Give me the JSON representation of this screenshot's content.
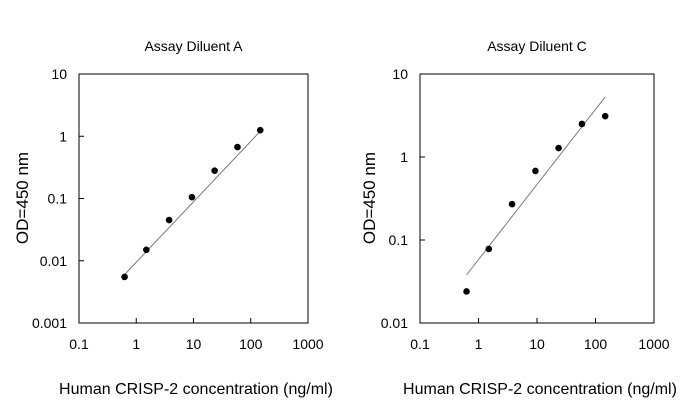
{
  "chart_data": [
    {
      "type": "scatter",
      "title": "Assay Diluent A",
      "xlabel": "Human CRISP-2 concentration (ng/ml)",
      "ylabel": "OD=450 nm",
      "xscale": "log",
      "yscale": "log",
      "xlim": [
        0.1,
        1000
      ],
      "ylim": [
        0.001,
        10
      ],
      "xticks": [
        "0.1",
        "1",
        "10",
        "100",
        "1000"
      ],
      "yticks": [
        "0.001",
        "0.01",
        "0.1",
        "1",
        "10"
      ],
      "grid": false,
      "legend": "none",
      "series": [
        {
          "x": [
            0.625,
            1.5,
            3.75,
            9.4,
            23.4,
            58.6,
            146.5
          ],
          "y": [
            0.0055,
            0.015,
            0.045,
            0.105,
            0.28,
            0.67,
            1.25
          ]
        }
      ],
      "fit_line": {
        "x": [
          0.625,
          146.5
        ],
        "y": [
          0.006,
          1.2
        ]
      }
    },
    {
      "type": "scatter",
      "title": "Assay Diluent C",
      "xlabel": "Human CRISP-2 concentration (ng/ml)",
      "ylabel": "OD=450 nm",
      "xscale": "log",
      "yscale": "log",
      "xlim": [
        0.1,
        1000
      ],
      "ylim": [
        0.01,
        10
      ],
      "xticks": [
        "0.1",
        "1",
        "10",
        "100",
        "1000"
      ],
      "yticks": [
        "0.01",
        "0.1",
        "1",
        "10"
      ],
      "grid": false,
      "legend": "none",
      "series": [
        {
          "x": [
            0.625,
            1.5,
            3.75,
            9.4,
            23.4,
            58.6,
            146.5
          ],
          "y": [
            0.024,
            0.078,
            0.27,
            0.68,
            1.28,
            2.5,
            3.1
          ]
        }
      ],
      "fit_line": {
        "x": [
          0.625,
          146.5
        ],
        "y": [
          0.038,
          5.3
        ]
      }
    }
  ]
}
